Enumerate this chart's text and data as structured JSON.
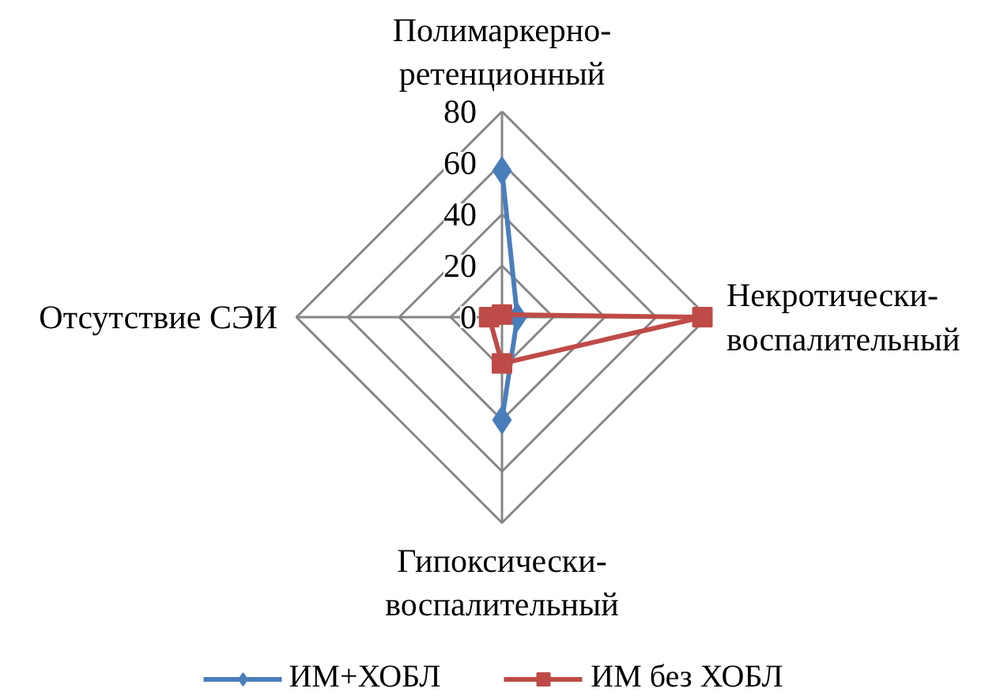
{
  "chart_data": {
    "type": "radar",
    "categories": [
      "Полимаркерно-\nретенционный",
      "Некротически-\nвоспалительный",
      "Гипоксически-\nвоспалительный",
      "Отсутствие СЭИ"
    ],
    "series": [
      {
        "name": "ИМ+ХОБЛ",
        "color": "#4a7ebb",
        "values": [
          57,
          6,
          40,
          null
        ],
        "marker": "diamond"
      },
      {
        "name": "ИМ без ХОБЛ",
        "color": "#be4b48",
        "values": [
          1,
          78,
          18,
          5
        ],
        "marker": "square"
      }
    ],
    "ylim": [
      0,
      80
    ],
    "yticks": [
      0,
      20,
      40,
      60,
      80
    ],
    "grid": true,
    "legend": "bottom",
    "line_style": "solid"
  }
}
